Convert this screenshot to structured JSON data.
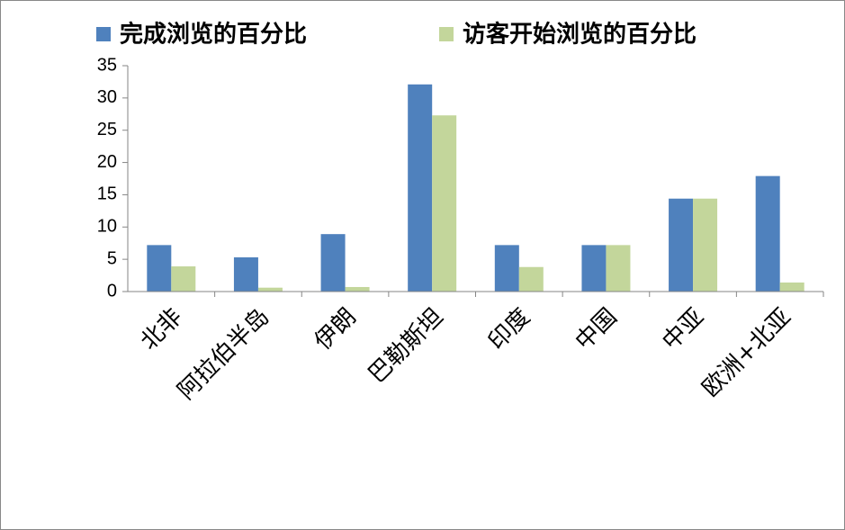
{
  "chart_data": {
    "type": "bar",
    "categories": [
      "北非",
      "阿拉伯半岛",
      "伊朗",
      "巴勒斯坦",
      "印度",
      "中国",
      "中亚",
      "欧洲+北亚"
    ],
    "series": [
      {
        "name": "完成浏览的百分比",
        "color": "#4f81bd",
        "values": [
          7.2,
          5.3,
          8.9,
          32.1,
          7.2,
          7.2,
          14.4,
          17.9
        ]
      },
      {
        "name": "访客开始浏览的百分比",
        "color": "#c3d69b",
        "values": [
          3.9,
          0.6,
          0.7,
          27.3,
          3.8,
          7.2,
          14.4,
          1.4
        ]
      }
    ],
    "ylim": [
      0,
      35
    ],
    "yticks": [
      0,
      5,
      10,
      15,
      20,
      25,
      30,
      35
    ],
    "legend": "top"
  }
}
